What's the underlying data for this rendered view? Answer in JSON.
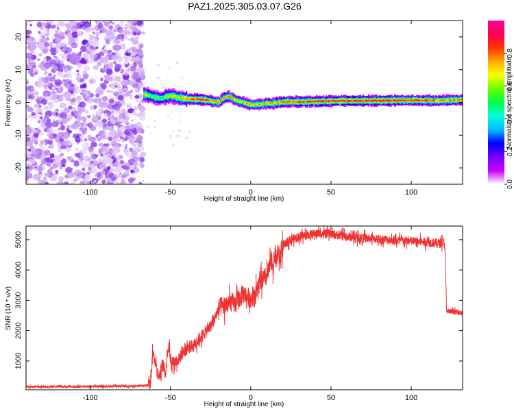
{
  "chart_data": [
    {
      "type": "heatmap",
      "title": "PAZ1.2025.305.03.07.G26",
      "xlabel": "Height of straight line (km)",
      "ylabel": "Frequency (Hz)",
      "xlim": [
        -140,
        132
      ],
      "ylim": [
        -25,
        25
      ],
      "x_ticks": [
        -100,
        -50,
        0,
        50,
        100
      ],
      "y_ticks": [
        20,
        10,
        0,
        -10,
        -20
      ],
      "noise_region": {
        "x": [
          -140,
          -67
        ],
        "y": [
          -25,
          25
        ]
      },
      "ridge": {
        "x": [
          -67,
          -63,
          -60,
          -56,
          -53,
          -50,
          -46,
          -42,
          -38,
          -34,
          -30,
          -26,
          -23,
          -20,
          -17,
          -14,
          -11,
          -8,
          -5,
          -2,
          1,
          4,
          7,
          10,
          13,
          16,
          20,
          25,
          30,
          40,
          50,
          60,
          70,
          80,
          90,
          100,
          110,
          115,
          120,
          125,
          132
        ],
        "freq": [
          2.5,
          2.0,
          1.5,
          1.2,
          1.8,
          2.0,
          1.5,
          1.2,
          1.0,
          1.0,
          0.8,
          0.6,
          0.2,
          0.1,
          1.5,
          1.8,
          1.0,
          0.4,
          0.0,
          -0.5,
          -0.8,
          -0.6,
          -0.5,
          -0.2,
          -0.4,
          0.0,
          0.1,
          0.2,
          0.2,
          0.3,
          0.4,
          0.5,
          0.5,
          0.5,
          0.6,
          0.6,
          0.6,
          0.5,
          0.6,
          0.7,
          0.8
        ],
        "amplitude": [
          0.7,
          0.55,
          0.6,
          0.5,
          0.65,
          0.7,
          0.65,
          0.75,
          0.85,
          0.9,
          0.9,
          0.8,
          0.75,
          0.8,
          0.75,
          0.8,
          0.75,
          0.7,
          0.7,
          0.75,
          0.7,
          0.75,
          0.7,
          0.8,
          0.75,
          0.75,
          0.8,
          0.85,
          0.85,
          0.9,
          0.9,
          0.9,
          0.9,
          0.92,
          0.9,
          0.88,
          0.85,
          0.8,
          0.75,
          0.8,
          0.75
        ]
      },
      "colorbar": {
        "label": "Normalized spectral amplitude",
        "range": [
          0.0,
          1.0
        ],
        "ticks": [
          "0.0",
          "0.2",
          "0.4",
          "0.6",
          "0.8"
        ],
        "colormap": [
          "#ffffff",
          "#cc00ff",
          "#7700ff",
          "#0000ff",
          "#00bbff",
          "#00ffdd",
          "#00ff44",
          "#66ff00",
          "#ffff00",
          "#ffaa00",
          "#ff3300",
          "#ff0055",
          "#ff0099"
        ]
      }
    },
    {
      "type": "line",
      "xlabel": "Height of straight line (km)",
      "ylabel": "SNR (10 * v/v)",
      "xlim": [
        -140,
        132
      ],
      "ylim": [
        50,
        5450
      ],
      "x_ticks": [
        -100,
        -50,
        0,
        50,
        100
      ],
      "y_ticks": [
        1000,
        2000,
        3000,
        4000,
        5000
      ],
      "line_color": "#ee3333",
      "series": [
        {
          "name": "SNR",
          "x": [
            -140,
            -100,
            -70,
            -64,
            -62,
            -61,
            -60,
            -59,
            -58,
            -57,
            -56,
            -55,
            -53,
            -52,
            -51,
            -50,
            -48,
            -45,
            -42,
            -40,
            -35,
            -30,
            -25,
            -22,
            -20,
            -15,
            -12,
            -10,
            -8,
            -6,
            -5,
            -3,
            0,
            3,
            5,
            7,
            10,
            12,
            13,
            14,
            15,
            16,
            17,
            18,
            20,
            23,
            25,
            30,
            35,
            40,
            45,
            50,
            55,
            60,
            70,
            80,
            90,
            100,
            110,
            118,
            120,
            121,
            122,
            125,
            130,
            132
          ],
          "y": [
            150,
            160,
            170,
            200,
            600,
            1300,
            1100,
            900,
            600,
            500,
            700,
            900,
            650,
            1300,
            1500,
            1050,
            950,
            1050,
            1300,
            1400,
            1550,
            1850,
            2150,
            2450,
            2750,
            2850,
            2950,
            2850,
            3000,
            3100,
            3250,
            3150,
            3050,
            3200,
            3500,
            3650,
            3800,
            4100,
            4350,
            4100,
            4500,
            4300,
            4600,
            4400,
            4750,
            4950,
            5000,
            5100,
            5150,
            5200,
            5200,
            5180,
            5150,
            5100,
            5050,
            5020,
            4980,
            4950,
            4920,
            4880,
            4920,
            4800,
            2650,
            2620,
            2600,
            2600
          ]
        }
      ]
    }
  ]
}
